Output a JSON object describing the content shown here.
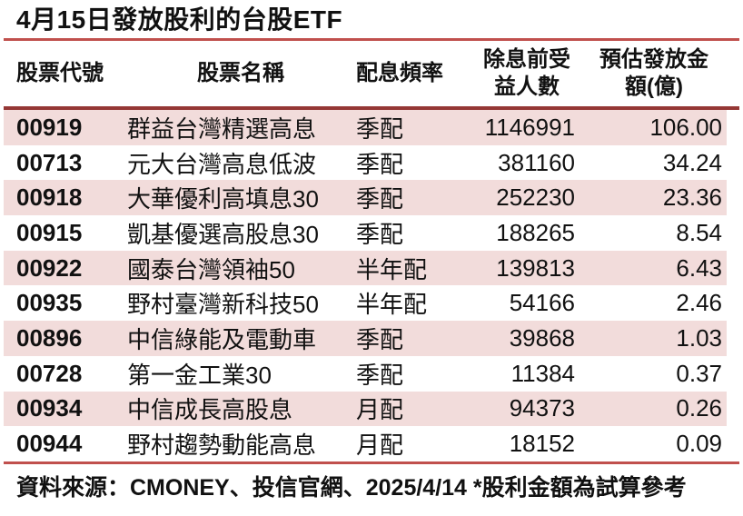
{
  "title": "4月15日發放股利的台股ETF",
  "footer": "資料來源：CMONEY、投信官網、2025/4/14 *股利金額為試算參考",
  "colors": {
    "line-red": "#c0504d",
    "line-maroon": "#953735",
    "stripe-pink": "#f2dcdb",
    "text": "#111111"
  },
  "headers_display": [
    "股票代號",
    "股票名稱",
    "配息頻率",
    "除息前受\n益人數",
    "預估發放金\n額(億)"
  ],
  "chart_data": {
    "type": "table",
    "title": "4月15日發放股利的台股ETF",
    "columns": [
      "股票代號",
      "股票名稱",
      "配息頻率",
      "除息前受益人數",
      "預估發放金額(億)"
    ],
    "rows": [
      [
        "00919",
        "群益台灣精選高息",
        "季配",
        "1146991",
        "106.00"
      ],
      [
        "00713",
        "元大台灣高息低波",
        "季配",
        "381160",
        "34.24"
      ],
      [
        "00918",
        "大華優利高填息30",
        "季配",
        "252230",
        "23.36"
      ],
      [
        "00915",
        "凱基優選高股息30",
        "季配",
        "188265",
        "8.54"
      ],
      [
        "00922",
        "國泰台灣領袖50",
        "半年配",
        "139813",
        "6.43"
      ],
      [
        "00935",
        "野村臺灣新科技50",
        "半年配",
        "54166",
        "2.46"
      ],
      [
        "00896",
        "中信綠能及電動車",
        "季配",
        "39868",
        "1.03"
      ],
      [
        "00728",
        "第一金工業30",
        "季配",
        "11384",
        "0.37"
      ],
      [
        "00934",
        "中信成長高股息",
        "月配",
        "94373",
        "0.26"
      ],
      [
        "00944",
        "野村趨勢動能高息",
        "月配",
        "18152",
        "0.09"
      ]
    ],
    "source_note": "資料來源：CMONEY、投信官網、2025/4/14 *股利金額為試算參考",
    "stripe_rows": "odd rows (1st,3rd,5th,7th,9th) pink #f2dcdb"
  }
}
